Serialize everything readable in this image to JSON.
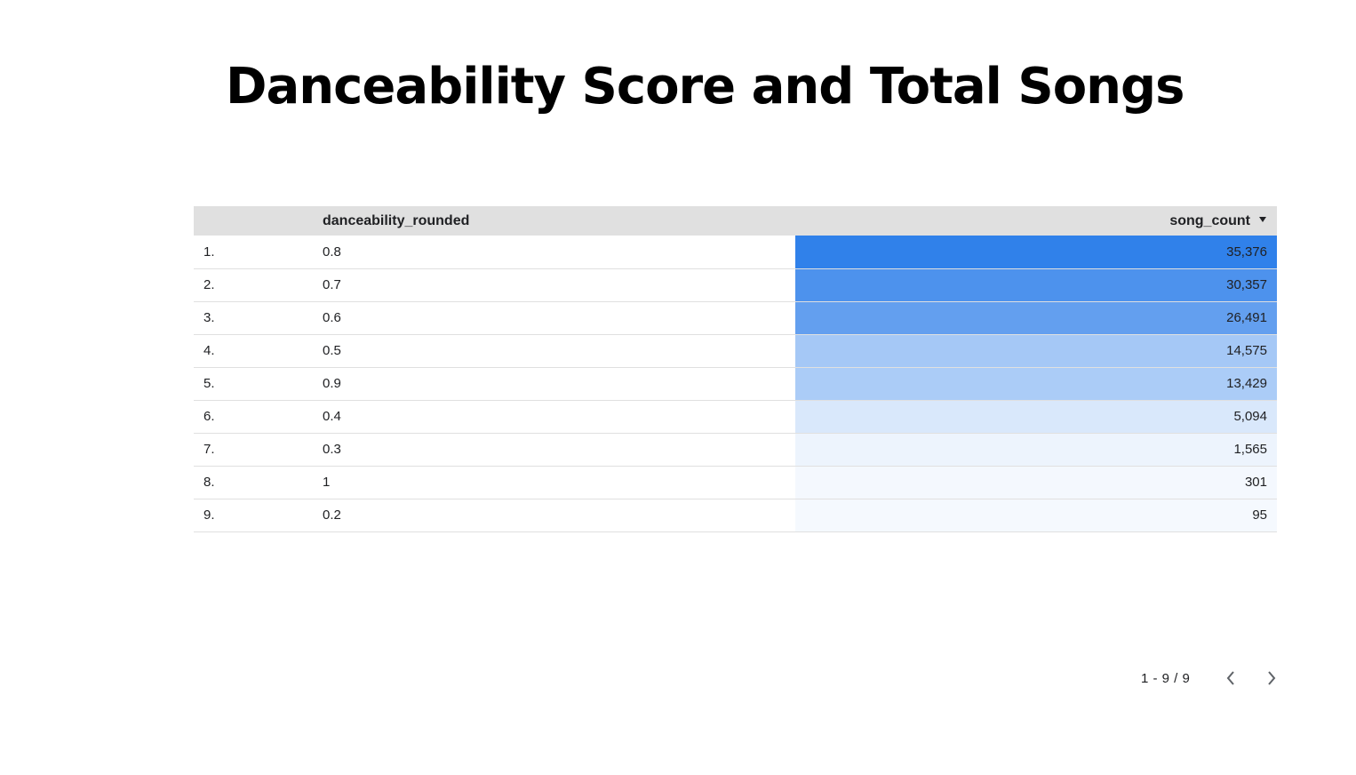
{
  "title": "Danceability Score and Total Songs",
  "table": {
    "columns": {
      "index": "",
      "dimension": "danceability_rounded",
      "metric": "song_count"
    },
    "sort": "descending",
    "heat_color": "#1a73e8",
    "rows": [
      {
        "index": "1.",
        "dimension": "0.8",
        "metric": "35,376",
        "value": 35376
      },
      {
        "index": "2.",
        "dimension": "0.7",
        "metric": "30,357",
        "value": 30357
      },
      {
        "index": "3.",
        "dimension": "0.6",
        "metric": "26,491",
        "value": 26491
      },
      {
        "index": "4.",
        "dimension": "0.5",
        "metric": "14,575",
        "value": 14575
      },
      {
        "index": "5.",
        "dimension": "0.9",
        "metric": "13,429",
        "value": 13429
      },
      {
        "index": "6.",
        "dimension": "0.4",
        "metric": "5,094",
        "value": 5094
      },
      {
        "index": "7.",
        "dimension": "0.3",
        "metric": "1,565",
        "value": 1565
      },
      {
        "index": "8.",
        "dimension": "1",
        "metric": "301",
        "value": 301
      },
      {
        "index": "9.",
        "dimension": "0.2",
        "metric": "95",
        "value": 95
      }
    ]
  },
  "pagination": {
    "label": "1 - 9 / 9",
    "prev_icon": "chevron-left-icon",
    "next_icon": "chevron-right-icon"
  }
}
